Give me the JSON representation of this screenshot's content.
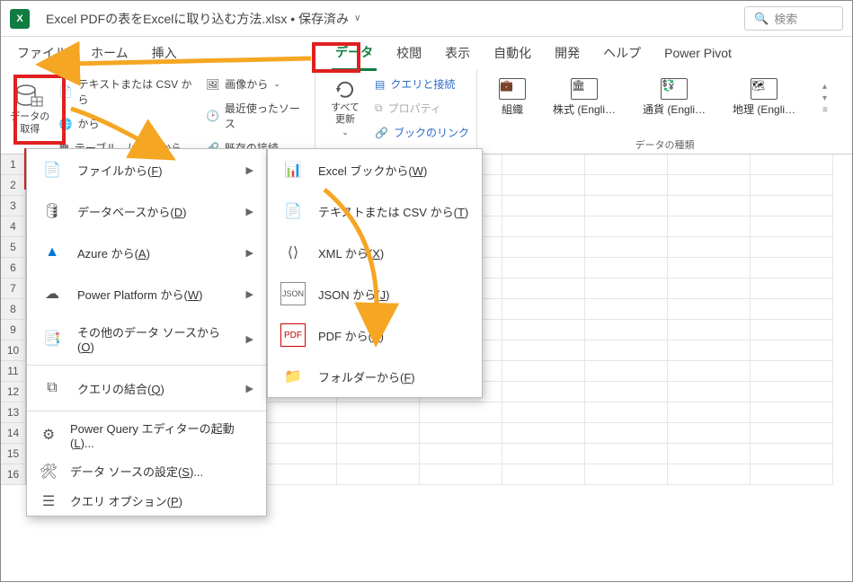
{
  "title": "Excel PDFの表をExcelに取り込む方法.xlsx • 保存済み",
  "search_placeholder": "検索",
  "tabs": {
    "file": "ファイル",
    "home": "ホーム",
    "insert": "挿入",
    "data": "データ",
    "review": "校閲",
    "view": "表示",
    "automate": "自動化",
    "developer": "開発",
    "help": "ヘルプ",
    "powerpivot": "Power Pivot"
  },
  "ribbon": {
    "get_data": "データの\n取得",
    "text_csv": "テキストまたは CSV から",
    "web": "から",
    "table_range": "テーブル、は範囲から",
    "image": "画像から",
    "recent": "最近使ったソース",
    "existing": "既存の接続",
    "refresh_all": "すべて\n更新",
    "queries": "クエリと接続",
    "properties": "プロパティ",
    "booklink": "ブックのリンク",
    "org": "組織",
    "stocks": "株式 (Engli…",
    "currency": "通貨 (Engli…",
    "geo": "地理 (Engli…",
    "data_types_label": "データの種類"
  },
  "menu1": {
    "file_from": "ファイルから(F)",
    "db_from": "データベースから(D)",
    "azure": "Azure から(A)",
    "pp": "Power Platform から(W)",
    "other": "その他のデータ ソースから(O)",
    "combine": "クエリの結合(Q)",
    "pq_editor": "Power Query エディターの起動(L)...",
    "ds_settings": "データ ソースの設定(S)...",
    "q_options": "クエリ オプション(P)"
  },
  "menu2": {
    "excel_wb": "Excel ブックから(W)",
    "text_csv": "テキストまたは CSV から(T)",
    "xml": "XML から(X)",
    "json": "JSON から(J)",
    "pdf": "PDF から(P)",
    "folder": "フォルダーから(F)"
  },
  "colors": {
    "highlight_red": "#e02020",
    "arrow": "#f5a623",
    "excel_green": "#107c41"
  }
}
